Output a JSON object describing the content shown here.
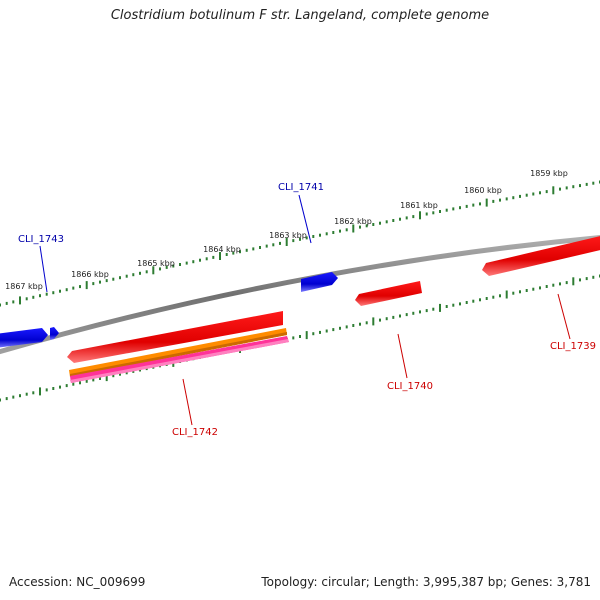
{
  "title": "Clostridium botulinum F str. Langeland, complete genome",
  "footer": {
    "accession": "Accession: NC_009699",
    "summary": "Topology: circular; Length: 3,995,387 bp; Genes: 3,781"
  },
  "colors": {
    "backbone": "#808080",
    "forward_gene": "#0000e0",
    "reverse_gene": "#ee0000",
    "orange_feature": "#ff8c00",
    "pink_feature": "#ff3399",
    "tick": "#2e7d32",
    "forward_label": "#0000aa",
    "reverse_label": "#cc0000"
  },
  "scale_ticks": [
    {
      "label": "1859 kbp"
    },
    {
      "label": "1860 kbp"
    },
    {
      "label": "1861 kbp"
    },
    {
      "label": "1862 kbp"
    },
    {
      "label": "1863 kbp"
    },
    {
      "label": "1864 kbp"
    },
    {
      "label": "1865 kbp"
    },
    {
      "label": "1866 kbp"
    },
    {
      "label": "1867 kbp"
    }
  ],
  "genes": [
    {
      "id": "CLI_1743",
      "label": "CLI_1743",
      "strand": "+"
    },
    {
      "id": "CLI_1741",
      "label": "CLI_1741",
      "strand": "+"
    },
    {
      "id": "CLI_1742",
      "label": "CLI_1742",
      "strand": "-"
    },
    {
      "id": "CLI_1740",
      "label": "CLI_1740",
      "strand": "-"
    },
    {
      "id": "CLI_1739",
      "label": "CLI_1739",
      "strand": "-"
    }
  ]
}
